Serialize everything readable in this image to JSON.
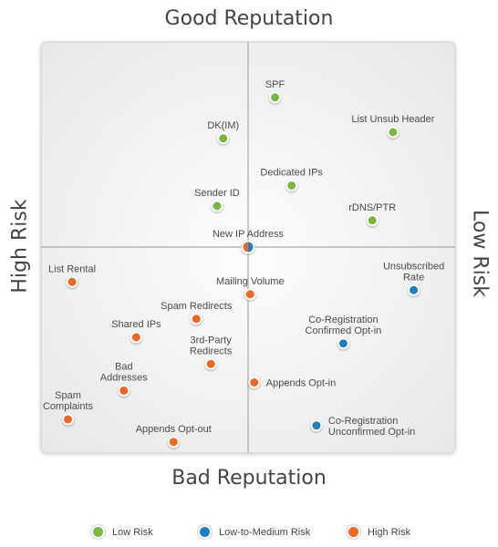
{
  "chart_data": {
    "type": "scatter",
    "quadrant_labels": {
      "top": "Good Reputation",
      "bottom": "Bad Reputation",
      "left": "High Risk",
      "right": "Low Risk"
    },
    "colors": {
      "low": "#7ab83e",
      "medium": "#1e7fc3",
      "high": "#f26522"
    },
    "legend": [
      {
        "key": "low",
        "label": "Low Risk"
      },
      {
        "key": "medium",
        "label": "Low-to-Medium Risk"
      },
      {
        "key": "high",
        "label": "High Risk"
      }
    ],
    "xlim": [
      -1,
      1
    ],
    "ylim": [
      -1,
      1
    ],
    "points": [
      {
        "label": "SPF",
        "x": 0.13,
        "y": 0.73,
        "risk": "low",
        "label_pos": "above"
      },
      {
        "label": "List Unsub Header",
        "x": 0.7,
        "y": 0.56,
        "risk": "low",
        "label_pos": "above"
      },
      {
        "label": "DK(IM)",
        "x": -0.12,
        "y": 0.53,
        "risk": "low",
        "label_pos": "above"
      },
      {
        "label": "Dedicated IPs",
        "x": 0.21,
        "y": 0.3,
        "risk": "low",
        "label_pos": "above"
      },
      {
        "label": "Sender ID",
        "x": -0.15,
        "y": 0.2,
        "risk": "low",
        "label_pos": "above"
      },
      {
        "label": "rDNS/PTR",
        "x": 0.6,
        "y": 0.13,
        "risk": "low",
        "label_pos": "above"
      },
      {
        "label": "New IP Address",
        "x": 0.0,
        "y": 0.0,
        "risk": "low_high",
        "label_pos": "above"
      },
      {
        "label": "List Rental",
        "x": -0.85,
        "y": -0.17,
        "risk": "high",
        "label_pos": "above"
      },
      {
        "label": "Unsubscribed Rate",
        "x": 0.8,
        "y": -0.21,
        "risk": "medium",
        "label_pos": "above"
      },
      {
        "label": "Mailing Volume",
        "x": 0.01,
        "y": -0.23,
        "risk": "high",
        "label_pos": "above"
      },
      {
        "label": "Spam Redirects",
        "x": -0.25,
        "y": -0.35,
        "risk": "high",
        "label_pos": "above"
      },
      {
        "label": "Co-Registration Confirmed Opt-in",
        "x": 0.46,
        "y": -0.47,
        "risk": "medium",
        "label_pos": "above"
      },
      {
        "label": "Shared IPs",
        "x": -0.54,
        "y": -0.44,
        "risk": "high",
        "label_pos": "above"
      },
      {
        "label": "3rd-Party Redirects",
        "x": -0.18,
        "y": -0.57,
        "risk": "high",
        "label_pos": "above"
      },
      {
        "label": "Bad Addresses",
        "x": -0.6,
        "y": -0.7,
        "risk": "high",
        "label_pos": "above"
      },
      {
        "label": "Appends Opt-in",
        "x": 0.03,
        "y": -0.66,
        "risk": "high",
        "label_pos": "right"
      },
      {
        "label": "Spam Complaints",
        "x": -0.87,
        "y": -0.84,
        "risk": "high",
        "label_pos": "above"
      },
      {
        "label": "Co-Registration Unconfirmed Opt-in",
        "x": 0.33,
        "y": -0.87,
        "risk": "medium",
        "label_pos": "right"
      },
      {
        "label": "Appends Opt-out",
        "x": -0.36,
        "y": -0.95,
        "risk": "high",
        "label_pos": "above"
      }
    ]
  }
}
